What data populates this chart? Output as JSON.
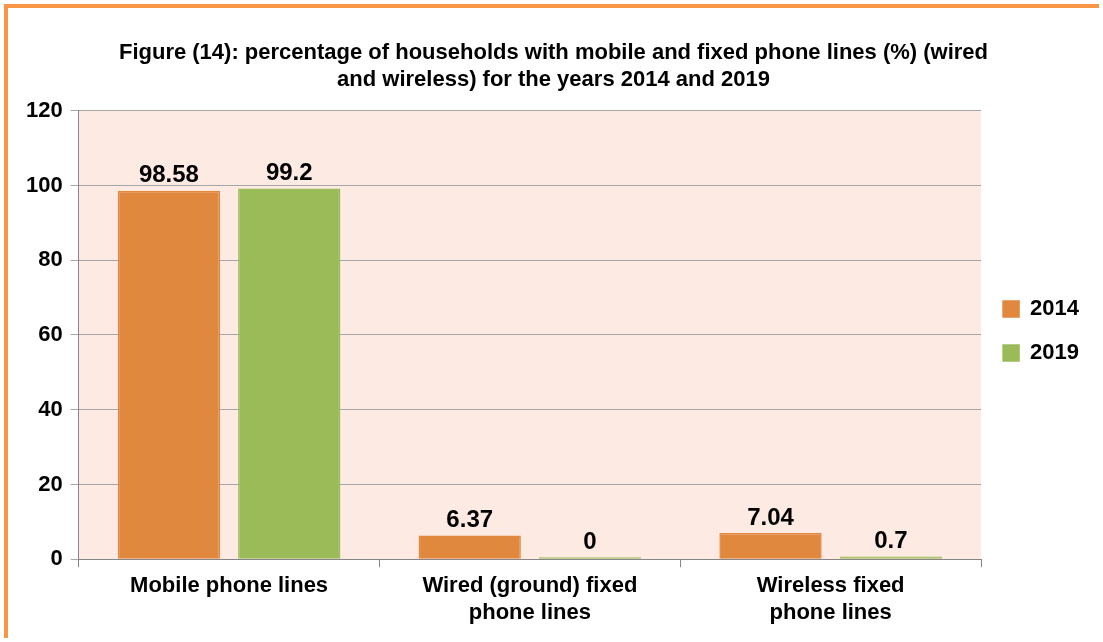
{
  "chart_data": {
    "type": "bar",
    "title": "Figure (14): percentage of households with mobile and fixed phone lines (%) (wired and wireless) for the years 2014 and 2019",
    "categories": [
      "Mobile phone lines",
      "Wired (ground) fixed phone lines",
      "Wireless fixed phone lines"
    ],
    "series": [
      {
        "name": "2014",
        "color": "#e0883e",
        "values": [
          98.58,
          6.37,
          7.04
        ]
      },
      {
        "name": "2019",
        "color": "#9bbb59",
        "values": [
          99.2,
          0,
          0.7
        ]
      }
    ],
    "ylim": [
      0,
      120
    ],
    "yticks": [
      0,
      20,
      40,
      60,
      80,
      100,
      120
    ],
    "grid": "y",
    "legend": "right",
    "data_labels": true
  }
}
